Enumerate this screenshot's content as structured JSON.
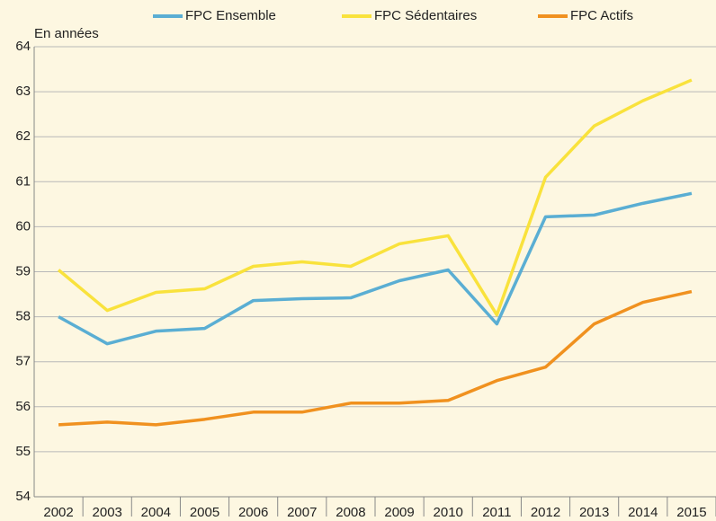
{
  "chart_data": {
    "type": "line",
    "ylabel": "En années",
    "categories": [
      "2002",
      "2003",
      "2004",
      "2005",
      "2006",
      "2007",
      "2008",
      "2009",
      "2010",
      "2011",
      "2012",
      "2013",
      "2014",
      "2015"
    ],
    "series": [
      {
        "name": "FPC Ensemble",
        "color": "#5aaed3",
        "values": [
          58.0,
          57.4,
          57.68,
          57.74,
          58.36,
          58.4,
          58.42,
          58.8,
          59.04,
          57.84,
          60.22,
          60.26,
          60.52,
          60.74
        ]
      },
      {
        "name": "FPC Sédentaires",
        "color": "#f9e23c",
        "values": [
          59.04,
          58.14,
          58.54,
          58.62,
          59.12,
          59.22,
          59.12,
          59.62,
          59.8,
          58.04,
          61.1,
          62.24,
          62.8,
          63.26
        ]
      },
      {
        "name": "FPC Actifs",
        "color": "#f0911f",
        "values": [
          55.6,
          55.66,
          55.6,
          55.72,
          55.88,
          55.88,
          56.08,
          56.08,
          56.14,
          56.58,
          56.88,
          57.84,
          58.32,
          58.56
        ]
      }
    ],
    "ylim": [
      54,
      64
    ],
    "yticks": [
      54,
      55,
      56,
      57,
      58,
      59,
      60,
      61,
      62,
      63,
      64
    ],
    "grid": true,
    "legend": "top"
  }
}
